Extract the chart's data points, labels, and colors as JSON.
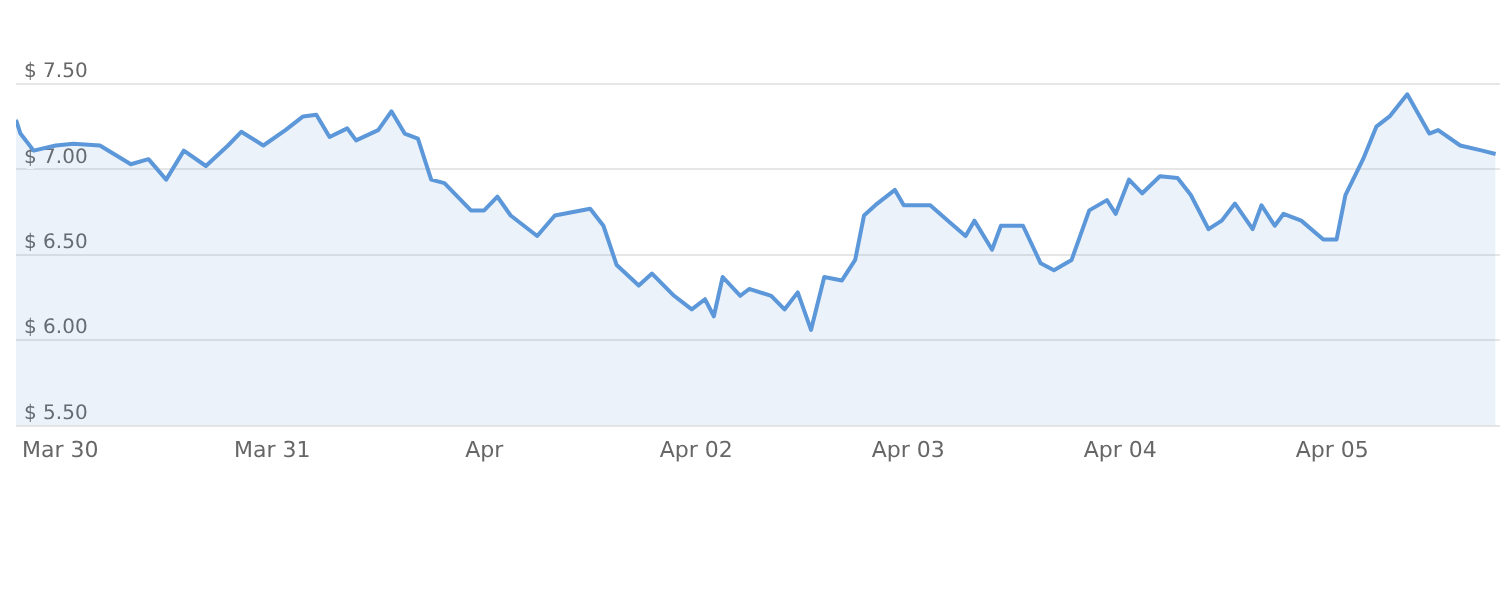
{
  "chart_data": {
    "type": "area",
    "color": "#5b97d9",
    "x": [
      "--03-29T19:00",
      "--03-29T19:30",
      "--03-29T21:00",
      "--03-29T23:30",
      "--03-30T01:30",
      "--03-30T04:30",
      "--03-30T08:00",
      "--03-30T10:00",
      "--03-30T12:00",
      "--03-30T14:00",
      "--03-30T16:30",
      "--03-30T19:00",
      "--03-30T20:30",
      "--03-30T23:00",
      "--03-31T01:30",
      "--03-31T03:30",
      "--03-31T05:00",
      "--03-31T06:30",
      "--03-31T08:30",
      "--03-31T09:30",
      "--03-31T12:00",
      "--03-31T13:30",
      "--03-31T15:00",
      "--03-31T16:30",
      "--03-31T18:00",
      "--03-31T19:30",
      "--03-31T22:30",
      "--04-01T00:00",
      "--04-01T01:30",
      "--04-01T03:00",
      "--04-01T06:00",
      "--04-01T08:00",
      "--04-01T12:00",
      "--04-01T13:30",
      "--04-01T15:00",
      "--04-01T17:30",
      "--04-01T19:00",
      "--04-01T21:30",
      "--04-01T23:30",
      "--04-02T01:00",
      "--04-02T02:00",
      "--04-02T03:00",
      "--04-02T05:00",
      "--04-02T06:00",
      "--04-02T08:30",
      "--04-02T10:00",
      "--04-02T11:30",
      "--04-02T13:00",
      "--04-02T14:30",
      "--04-02T16:30",
      "--04-02T18:00",
      "--04-02T19:00",
      "--04-02T20:30",
      "--04-02T22:30",
      "--04-02T23:30",
      "--04-03T02:30",
      "--04-03T04:30",
      "--04-03T06:30",
      "--04-03T07:30",
      "--04-03T09:30",
      "--04-03T10:30",
      "--04-03T13:00",
      "--04-03T15:00",
      "--04-03T16:30",
      "--04-03T18:30",
      "--04-03T20:30",
      "--04-03T22:30",
      "--04-03T23:30",
      "--04-04T01:00",
      "--04-04T02:30",
      "--04-04T04:30",
      "--04-04T06:30",
      "--04-04T08:00",
      "--04-04T10:00",
      "--04-04T11:30",
      "--04-04T13:00",
      "--04-04T15:00",
      "--04-04T16:00",
      "--04-04T17:30",
      "--04-04T18:30",
      "--04-04T20:30",
      "--04-04T23:00",
      "--04-05T00:30",
      "--04-05T01:30",
      "--04-05T03:30",
      "--04-05T05:00",
      "--04-05T06:30",
      "--04-05T08:30",
      "--04-05T11:00",
      "--04-05T12:00",
      "--04-05T14:30",
      "--04-05T17:00",
      "--04-05T18:30"
    ],
    "values": [
      7.29,
      7.21,
      7.11,
      7.14,
      7.15,
      7.14,
      7.03,
      7.06,
      6.94,
      7.11,
      7.02,
      7.14,
      7.22,
      7.14,
      7.23,
      7.31,
      7.32,
      7.19,
      7.24,
      7.17,
      7.23,
      7.34,
      7.21,
      7.18,
      6.94,
      6.92,
      6.76,
      6.76,
      6.84,
      6.73,
      6.61,
      6.73,
      6.77,
      6.67,
      6.44,
      6.32,
      6.39,
      6.26,
      6.18,
      6.24,
      6.14,
      6.37,
      6.26,
      6.3,
      6.26,
      6.18,
      6.28,
      6.06,
      6.37,
      6.35,
      6.47,
      6.73,
      6.8,
      6.88,
      6.79,
      6.79,
      6.7,
      6.61,
      6.7,
      6.53,
      6.67,
      6.67,
      6.45,
      6.41,
      6.47,
      6.76,
      6.82,
      6.74,
      6.94,
      6.86,
      6.96,
      6.95,
      6.85,
      6.65,
      6.7,
      6.8,
      6.65,
      6.79,
      6.67,
      6.74,
      6.7,
      6.59,
      6.59,
      6.85,
      7.06,
      7.25,
      7.31,
      7.44,
      7.21,
      7.23,
      7.14,
      7.11,
      7.09
    ],
    "xlim": [
      "--03-29T19:00",
      "--04-05T19:00"
    ],
    "xticks": [
      {
        "value": "--03-30",
        "label": "Mar 30"
      },
      {
        "value": "--03-31",
        "label": "Mar 31"
      },
      {
        "value": "--04-01",
        "label": "Apr"
      },
      {
        "value": "--04-02",
        "label": "Apr 02"
      },
      {
        "value": "--04-03",
        "label": "Apr 03"
      },
      {
        "value": "--04-04",
        "label": "Apr 04"
      },
      {
        "value": "--04-05",
        "label": "Apr 05"
      }
    ],
    "ylim": [
      5.5,
      7.5
    ],
    "yticks": [
      {
        "value": 5.5,
        "label": "$ 5.50"
      },
      {
        "value": 6,
        "label": "$ 6.00"
      },
      {
        "value": 6.5,
        "label": "$ 6.50"
      },
      {
        "value": 7,
        "label": "$ 7.00"
      },
      {
        "value": 7.5,
        "label": "$ 7.50"
      }
    ],
    "grid": "y",
    "legend": false,
    "marker": "none",
    "line_style": "solid"
  }
}
